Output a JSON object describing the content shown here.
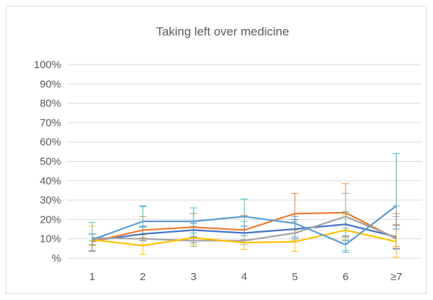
{
  "chart_data": {
    "type": "line",
    "title": "Taking left over medicine",
    "xlabel": "",
    "ylabel": "",
    "categories": [
      "1",
      "2",
      "3",
      "4",
      "5",
      "6",
      "≥7"
    ],
    "y_ticks": [
      "%",
      "10%",
      "20%",
      "30%",
      "40%",
      "50%",
      "60%",
      "70%",
      "80%",
      "90%",
      "100%"
    ],
    "ylim": [
      0,
      100
    ],
    "grid": true,
    "legend": "none",
    "error_bars": true,
    "series": [
      {
        "color": "#4472C4",
        "values": [
          9,
          12.5,
          14.5,
          13,
          15,
          17.5,
          11
        ],
        "err_low": [
          2.5,
          3.5,
          3.5,
          3.5,
          5,
          6.5,
          6
        ],
        "err_high": [
          3.5,
          4,
          3.5,
          3.5,
          5,
          6.5,
          6
        ]
      },
      {
        "color": "#ED7D31",
        "values": [
          8.5,
          14.5,
          16,
          14.5,
          23,
          23.5,
          10
        ],
        "err_low": [
          4.5,
          4,
          5.5,
          6.5,
          10,
          12,
          4
        ],
        "err_high": [
          4,
          7,
          7,
          7.5,
          10.5,
          15,
          13
        ]
      },
      {
        "color": "#A5A5A5",
        "values": [
          10.5,
          10,
          9,
          9,
          13,
          21.5,
          10.5
        ],
        "err_low": [
          3.5,
          3.5,
          3,
          2,
          4,
          6,
          6
        ],
        "err_high": [
          2,
          6,
          7.5,
          6,
          6,
          12,
          11
        ]
      },
      {
        "color": "#FFC000",
        "values": [
          9.5,
          6.5,
          10.5,
          8,
          8.5,
          14.5,
          8.5
        ],
        "err_low": [
          3,
          4.5,
          3.5,
          3.5,
          5,
          5,
          8
        ],
        "err_high": [
          7,
          5.5,
          5.5,
          5,
          6,
          8,
          9
        ]
      },
      {
        "color": "#5B9BD5",
        "values": [
          9.5,
          19,
          19,
          21.5,
          18,
          7,
          27
        ],
        "err_low": [
          6,
          9,
          11,
          10,
          7,
          4,
          12
        ],
        "err_high": [
          3,
          8,
          7,
          9,
          3.5,
          2,
          27
        ]
      },
      {
        "color": "#4ECDC4",
        "values": [
          null,
          null,
          null,
          null,
          null,
          null,
          null
        ],
        "err_low": [],
        "err_high": [],
        "errbar_only": {
          "1": [
            9,
            18.5
          ],
          "2": [
            16,
            26.5
          ],
          "3": [
            13,
            26
          ],
          "4": [
            19,
            30.5
          ],
          "6": [
            4,
            24
          ],
          "≥7": [
            27,
            54
          ]
        }
      }
    ]
  }
}
